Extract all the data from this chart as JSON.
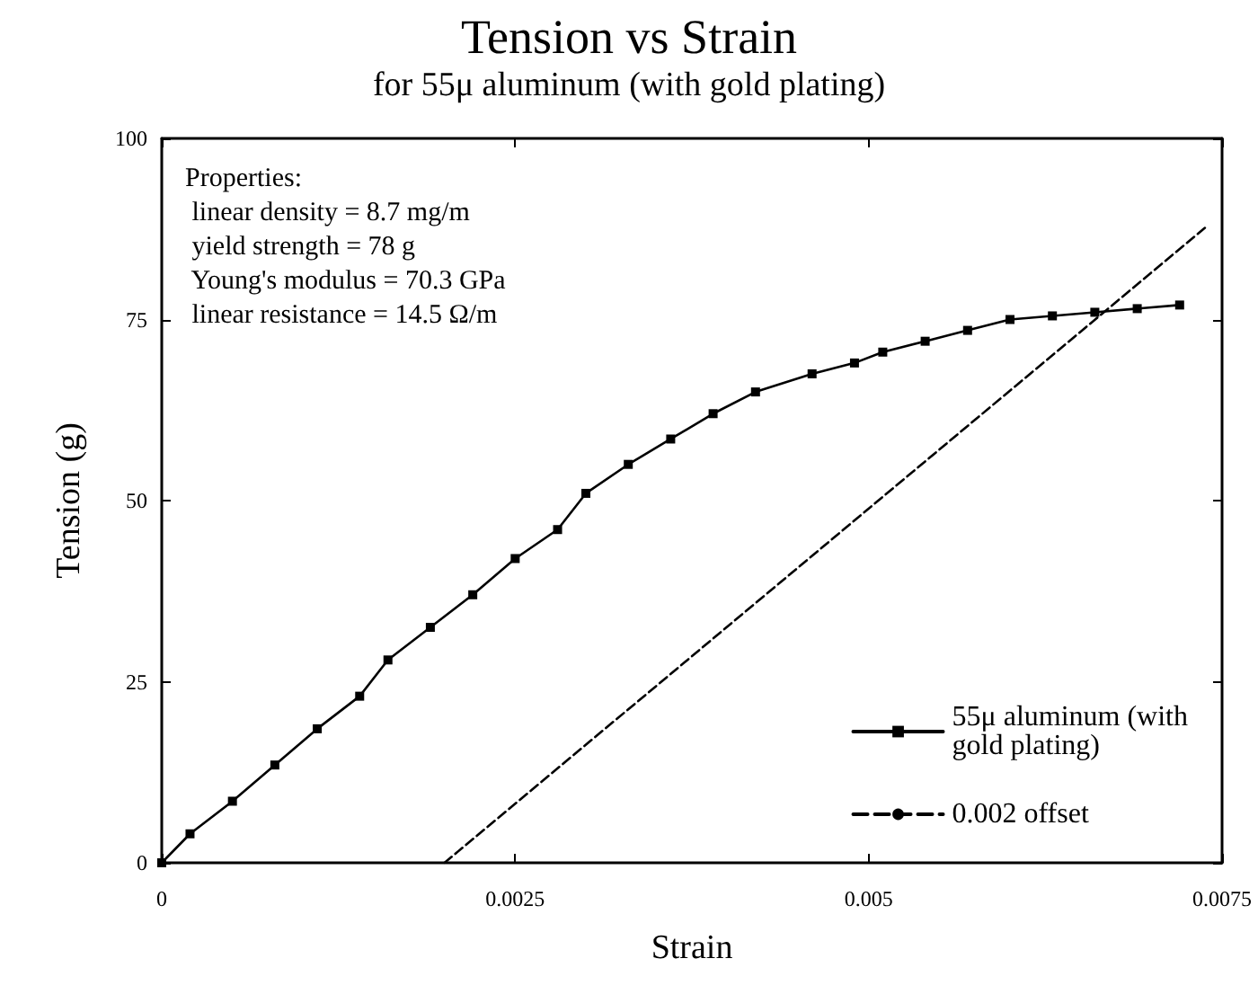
{
  "chart_data": {
    "type": "line",
    "title": "Tension vs Strain",
    "subtitle": "for 55μ aluminum (with gold plating)",
    "xlabel": "Strain",
    "ylabel": "Tension (g)",
    "annotations": [
      "Properties:\n linear density = 8.7 mg/m\n yield strength = 78 g\n Young's modulus = 70.3 GPa\n linear resistance = 14.5 Ω/m"
    ],
    "series": [
      {
        "name": "55μ aluminum (with gold plating)",
        "color": "#000000",
        "marker": "square",
        "line_style": "solid",
        "x": [
          0,
          0.0002,
          0.0005,
          0.0008,
          0.0011,
          0.0014,
          0.0016,
          0.0019,
          0.0022,
          0.0025,
          0.0028,
          0.003,
          0.0033,
          0.0036,
          0.0039,
          0.0042,
          0.0046,
          0.0049,
          0.0051,
          0.0054,
          0.0057,
          0.006,
          0.0063,
          0.0066,
          0.0069,
          0.0072
        ],
        "values": [
          0,
          4,
          8.5,
          13.5,
          18.5,
          23,
          28,
          32.5,
          37,
          42,
          46,
          51,
          55,
          58.5,
          62,
          65,
          67.5,
          69,
          70.5,
          72,
          73.5,
          75,
          75.5,
          76,
          76.5,
          77
        ]
      },
      {
        "name": "0.002 offset",
        "color": "#000000",
        "marker": "none",
        "line_style": "dashed",
        "x": [
          0.002,
          0.0074
        ],
        "values": [
          0,
          88
        ]
      }
    ],
    "xlim": [
      0,
      0.0075
    ],
    "xticks": [
      0,
      0.0025,
      0.005,
      0.0075
    ],
    "ylim": [
      0,
      100
    ],
    "yticks": [
      0,
      25,
      50,
      75,
      100
    ],
    "grid": false,
    "legend": "bottom right"
  }
}
